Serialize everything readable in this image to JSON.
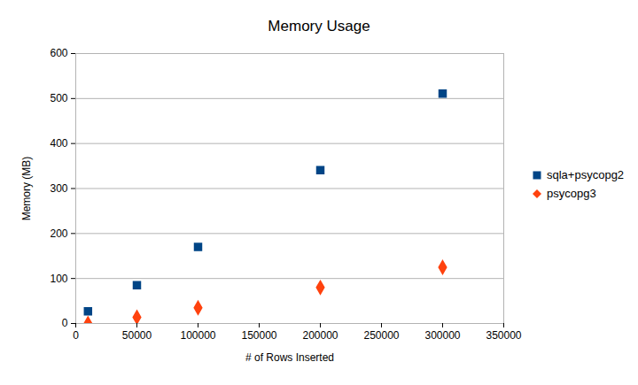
{
  "chart_data": {
    "type": "scatter",
    "title": "Memory Usage",
    "x_label": "# of Rows Inserted",
    "y_label": "Memory (MB)",
    "x": [
      10000,
      50000,
      100000,
      200000,
      300000
    ],
    "series": [
      {
        "name": "sqla+psycopg2",
        "color": "#004586",
        "marker": "square",
        "values": [
          27,
          85,
          170,
          341,
          511
        ]
      },
      {
        "name": "psycopg3",
        "color": "#ff420e",
        "marker": "diamond",
        "values": [
          0,
          14,
          35,
          80,
          125
        ]
      }
    ],
    "xlim": [
      0,
      350000
    ],
    "xticks": [
      0,
      50000,
      100000,
      150000,
      200000,
      250000,
      300000,
      350000
    ],
    "ylim": [
      0,
      600
    ],
    "yticks": [
      0,
      100,
      200,
      300,
      400,
      500,
      600
    ],
    "grid": "y",
    "legend": "right"
  }
}
